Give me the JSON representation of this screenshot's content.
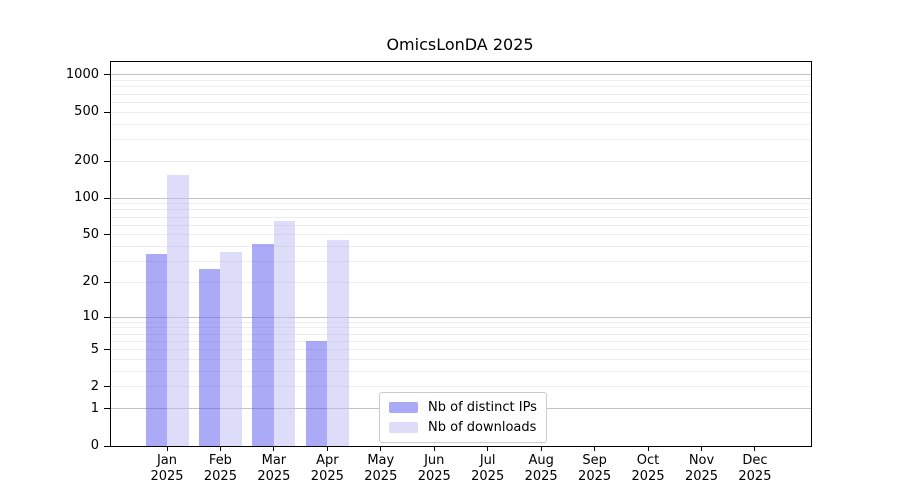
{
  "chart_data": {
    "type": "bar",
    "title": "OmicsLonDA 2025",
    "x": {
      "months": [
        "Jan",
        "Feb",
        "Mar",
        "Apr",
        "May",
        "Jun",
        "Jul",
        "Aug",
        "Sep",
        "Oct",
        "Nov",
        "Dec"
      ],
      "year": "2025"
    },
    "y_axis": {
      "scale": "log1p",
      "ticks": [
        1000,
        500,
        200,
        100,
        50,
        20,
        10,
        5,
        2,
        1,
        0
      ],
      "max": 1272,
      "major_gridlines": [
        1,
        10,
        100,
        1000
      ],
      "minor_gridlines": [
        2,
        3,
        4,
        5,
        6,
        7,
        8,
        9,
        20,
        30,
        40,
        50,
        60,
        70,
        80,
        90,
        200,
        300,
        400,
        500,
        600,
        700,
        800,
        900
      ]
    },
    "series": [
      {
        "name": "Nb of distinct IPs",
        "color": "rgba(85,85,238,0.5)",
        "values": [
          35,
          26,
          42,
          6,
          0,
          0,
          0,
          0,
          0,
          0,
          0,
          0
        ]
      },
      {
        "name": "Nb of downloads",
        "color": "rgba(187,187,245,0.5)",
        "values": [
          155,
          36,
          65,
          45,
          0,
          0,
          0,
          0,
          0,
          0,
          0,
          0
        ]
      }
    ],
    "legend_position": "bottom-center",
    "grid": "on"
  },
  "colors": {
    "distinct_ips_rendered": "#aaaaf6",
    "downloads_rendered": "#dddcfa",
    "major_grid": "#c2c2c2",
    "minor_grid": "#ededed",
    "axis": "#000000",
    "legend_border": "#cccccc",
    "background": "#ffffff"
  }
}
